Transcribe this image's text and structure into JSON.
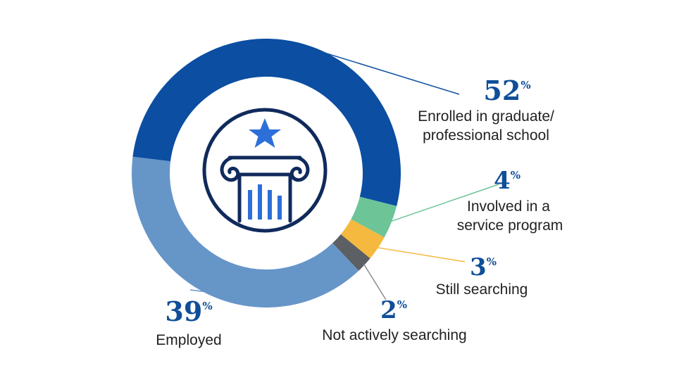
{
  "chart_data": {
    "type": "pie",
    "title": "",
    "slices": [
      {
        "label": "Enrolled in graduate/ professional school",
        "label_lines": [
          "Enrolled in graduate/",
          "professional school"
        ],
        "value": 52,
        "display": "52",
        "color": "#0b4ea2",
        "leader_color": "#0b4ea2"
      },
      {
        "label": "Involved in a service program",
        "label_lines": [
          "Involved in a",
          "service program"
        ],
        "value": 4,
        "display": "4",
        "color": "#6cc497",
        "leader_color": "#6cc497"
      },
      {
        "label": "Still searching",
        "label_lines": [
          "Still searching"
        ],
        "value": 3,
        "display": "3",
        "color": "#f4b93e",
        "leader_color": "#f4b93e"
      },
      {
        "label": "Not actively searching",
        "label_lines": [
          "Not actively searching"
        ],
        "value": 2,
        "display": "2",
        "color": "#5c5f63",
        "leader_color": "#8a8d91"
      },
      {
        "label": "Employed",
        "label_lines": [
          "Employed"
        ],
        "value": 39,
        "display": "39",
        "color": "#6695c8",
        "leader_color": "#6695c8"
      }
    ],
    "percent_sign": "%",
    "center_icon": "column-star-bars-icon",
    "icon_colors": {
      "outline": "#102a5c",
      "accent": "#2d6fd9"
    }
  }
}
